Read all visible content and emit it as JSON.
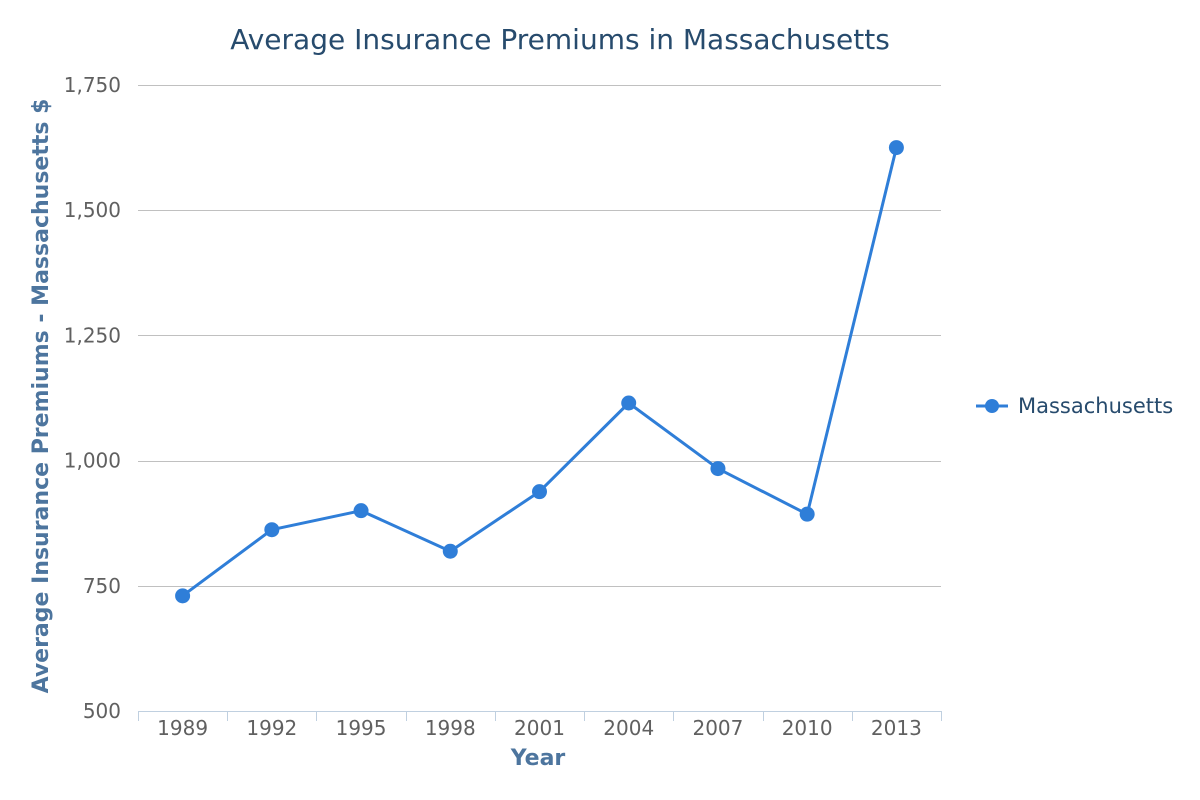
{
  "chart_data": {
    "type": "line",
    "title": "Average Insurance Premiums in Massachusetts",
    "xlabel": "Year",
    "ylabel": "Average Insurance Premiums - Massachusetts $",
    "categories": [
      "1989",
      "1992",
      "1995",
      "1998",
      "2001",
      "2004",
      "2007",
      "2010",
      "2013"
    ],
    "series": [
      {
        "name": "Massachusetts",
        "values": [
          730,
          862,
          900,
          819,
          938,
          1115,
          984,
          893,
          1625
        ],
        "color": "#2f7ed8"
      }
    ],
    "ylim": [
      500,
      1750
    ],
    "yticks": [
      500,
      750,
      1000,
      1250,
      1500,
      1750
    ],
    "ytick_labels": [
      "500",
      "750",
      "1,000",
      "1,250",
      "1,500",
      "1,750"
    ],
    "grid": true,
    "legend_position": "right"
  }
}
